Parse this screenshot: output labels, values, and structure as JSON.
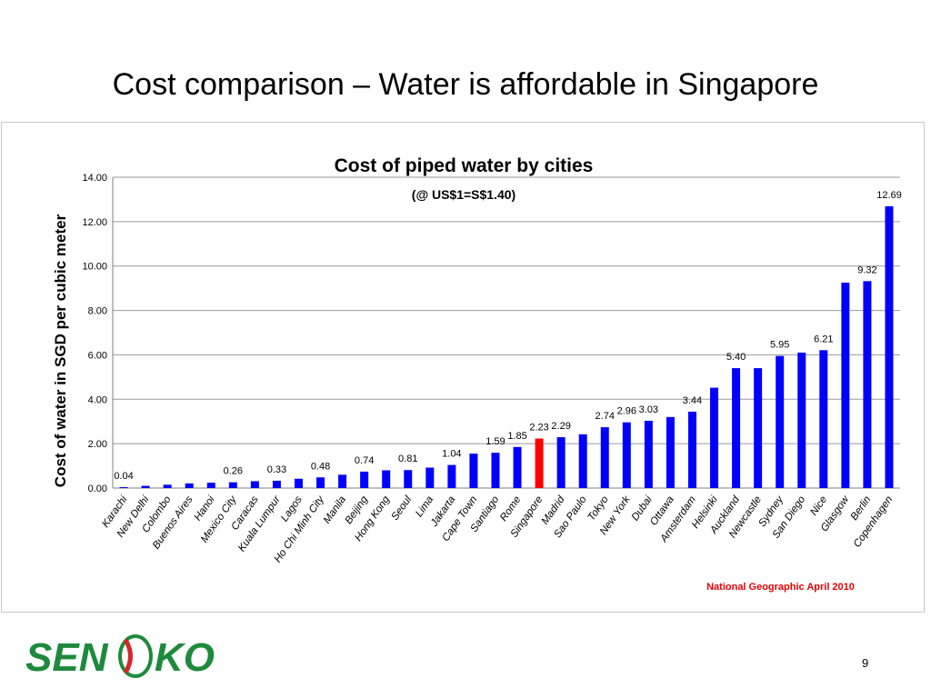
{
  "slide": {
    "title": "Cost comparison – Water is affordable in Singapore",
    "page_number": "9",
    "logo_text": "SENOKO"
  },
  "colors": {
    "bar": "#0000ff",
    "highlight_bar": "#ff0000",
    "source": "#e60000",
    "logo_green": "#1e8a3c",
    "logo_red": "#d7262b"
  },
  "source_note": "National Geographic April 2010",
  "chart_data": {
    "type": "bar",
    "title": "Cost of piped water by cities",
    "subtitle": "(@ US$1=S$1.40)",
    "xlabel": "",
    "ylabel": "Cost of water in SGD per cubic meter",
    "ylim": [
      0,
      14
    ],
    "yticks": [
      "0.00",
      "2.00",
      "4.00",
      "6.00",
      "8.00",
      "10.00",
      "12.00",
      "14.00"
    ],
    "grid": true,
    "highlight": "Singapore",
    "categories": [
      "Karachi",
      "New Delhi",
      "Colombo",
      "Buenos Aires",
      "Hanoi",
      "Mexico City",
      "Caracas",
      "Kuala Lumpur",
      "Lagos",
      "Ho Chi Minh City",
      "Manila",
      "Beijing",
      "Hong Kong",
      "Seoul",
      "Lima",
      "Jakarta",
      "Cape Town",
      "Santiago",
      "Rome",
      "Singapore",
      "Madrid",
      "Sao Paulo",
      "Tokyo",
      "New York",
      "Dubai",
      "Ottawa",
      "Amsterdam",
      "Helsinki",
      "Auckland",
      "Newcastle",
      "Sydney",
      "San Diego",
      "Nice",
      "Glasgow",
      "Berlin",
      "Copenhagen"
    ],
    "values": [
      0.04,
      0.1,
      0.15,
      0.21,
      0.24,
      0.26,
      0.31,
      0.33,
      0.42,
      0.48,
      0.6,
      0.74,
      0.8,
      0.81,
      0.92,
      1.04,
      1.55,
      1.59,
      1.85,
      2.23,
      2.29,
      2.42,
      2.74,
      2.96,
      3.03,
      3.2,
      3.44,
      4.52,
      5.4,
      5.4,
      5.95,
      6.1,
      6.21,
      9.25,
      9.32,
      12.69
    ],
    "data_labels": [
      {
        "category": "Karachi",
        "label": "0.04"
      },
      {
        "category": "Mexico City",
        "label": "0.26"
      },
      {
        "category": "Kuala Lumpur",
        "label": "0.33"
      },
      {
        "category": "Ho Chi Minh City",
        "label": "0.48"
      },
      {
        "category": "Beijing",
        "label": "0.74"
      },
      {
        "category": "Seoul",
        "label": "0.81"
      },
      {
        "category": "Jakarta",
        "label": "1.04"
      },
      {
        "category": "Santiago",
        "label": "1.59"
      },
      {
        "category": "Rome",
        "label": "1.85"
      },
      {
        "category": "Singapore",
        "label": "2.23"
      },
      {
        "category": "Madrid",
        "label": "2.29"
      },
      {
        "category": "Tokyo",
        "label": "2.74"
      },
      {
        "category": "New York",
        "label": "2.96"
      },
      {
        "category": "Dubai",
        "label": "3.03"
      },
      {
        "category": "Amsterdam",
        "label": "3.44"
      },
      {
        "category": "Auckland",
        "label": "5.40"
      },
      {
        "category": "Sydney",
        "label": "5.95"
      },
      {
        "category": "Nice",
        "label": "6.21"
      },
      {
        "category": "Berlin",
        "label": "9.32"
      },
      {
        "category": "Copenhagen",
        "label": "12.69"
      }
    ]
  }
}
